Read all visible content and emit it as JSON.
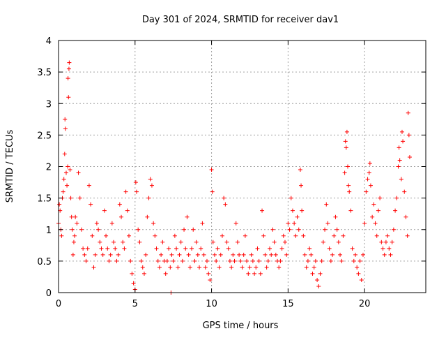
{
  "chart_data": {
    "type": "scatter",
    "title": "Day 301 of 2024, SRMTID for receiver dav1",
    "xlabel": "GPS time / hours",
    "ylabel": "SRMTID / TECUs",
    "xlim": [
      0,
      24
    ],
    "ylim": [
      0,
      4
    ],
    "x_ticks": [
      0,
      5,
      10,
      15,
      20
    ],
    "x_tick_labels": [
      "0",
      "5",
      "10",
      "15",
      "20"
    ],
    "y_ticks": [
      0,
      0.5,
      1,
      1.5,
      2,
      2.5,
      3,
      3.5,
      4
    ],
    "y_tick_labels": [
      "0",
      "0.5",
      "1",
      "1.5",
      "2",
      "2.5",
      "3",
      "3.5",
      "4"
    ],
    "grid": true,
    "marker": "+",
    "marker_color": "#ff0000",
    "series": [
      {
        "name": "dav1",
        "points": [
          [
            0.0,
            1.1
          ],
          [
            0.05,
            1.4
          ],
          [
            0.1,
            1.3
          ],
          [
            0.15,
            1.0
          ],
          [
            0.2,
            0.9
          ],
          [
            0.25,
            1.5
          ],
          [
            0.3,
            1.6
          ],
          [
            0.35,
            1.8
          ],
          [
            0.4,
            2.2
          ],
          [
            0.42,
            2.75
          ],
          [
            0.45,
            2.6
          ],
          [
            0.5,
            1.9
          ],
          [
            0.55,
            1.7
          ],
          [
            0.6,
            2.0
          ],
          [
            0.62,
            3.4
          ],
          [
            0.65,
            3.1
          ],
          [
            0.68,
            3.55
          ],
          [
            0.7,
            3.65
          ],
          [
            0.75,
            1.95
          ],
          [
            0.8,
            1.5
          ],
          [
            0.85,
            1.2
          ],
          [
            0.9,
            1.0
          ],
          [
            0.95,
            0.6
          ],
          [
            1.0,
            0.8
          ],
          [
            1.05,
            0.9
          ],
          [
            1.1,
            1.2
          ],
          [
            1.2,
            1.1
          ],
          [
            1.3,
            1.9
          ],
          [
            1.4,
            1.5
          ],
          [
            1.5,
            1.0
          ],
          [
            1.6,
            0.7
          ],
          [
            1.7,
            0.6
          ],
          [
            1.8,
            0.5
          ],
          [
            1.9,
            0.7
          ],
          [
            2.0,
            1.7
          ],
          [
            2.1,
            1.4
          ],
          [
            2.2,
            0.9
          ],
          [
            2.3,
            0.4
          ],
          [
            2.4,
            0.6
          ],
          [
            2.5,
            1.1
          ],
          [
            2.6,
            1.0
          ],
          [
            2.7,
            0.8
          ],
          [
            2.8,
            0.7
          ],
          [
            2.9,
            0.6
          ],
          [
            3.0,
            1.3
          ],
          [
            3.1,
            0.9
          ],
          [
            3.2,
            0.7
          ],
          [
            3.3,
            0.5
          ],
          [
            3.4,
            0.6
          ],
          [
            3.5,
            1.1
          ],
          [
            3.6,
            0.8
          ],
          [
            3.7,
            0.7
          ],
          [
            3.8,
            0.5
          ],
          [
            3.9,
            0.6
          ],
          [
            4.0,
            1.4
          ],
          [
            4.1,
            1.2
          ],
          [
            4.2,
            0.8
          ],
          [
            4.3,
            0.7
          ],
          [
            4.4,
            1.6
          ],
          [
            4.5,
            1.3
          ],
          [
            4.6,
            0.9
          ],
          [
            4.7,
            0.5
          ],
          [
            4.8,
            0.3
          ],
          [
            4.9,
            0.15
          ],
          [
            5.0,
            0.05
          ],
          [
            5.05,
            1.75
          ],
          [
            5.1,
            1.6
          ],
          [
            5.2,
            1.0
          ],
          [
            5.3,
            0.8
          ],
          [
            5.4,
            0.5
          ],
          [
            5.5,
            0.4
          ],
          [
            5.6,
            0.3
          ],
          [
            5.7,
            0.6
          ],
          [
            5.8,
            1.2
          ],
          [
            5.9,
            1.5
          ],
          [
            6.0,
            1.8
          ],
          [
            6.1,
            1.7
          ],
          [
            6.2,
            1.1
          ],
          [
            6.3,
            0.9
          ],
          [
            6.4,
            0.7
          ],
          [
            6.5,
            0.5
          ],
          [
            6.6,
            0.4
          ],
          [
            6.7,
            0.6
          ],
          [
            6.8,
            0.8
          ],
          [
            6.9,
            0.5
          ],
          [
            7.0,
            0.3
          ],
          [
            7.1,
            0.5
          ],
          [
            7.2,
            0.7
          ],
          [
            7.3,
            0.4
          ],
          [
            7.35,
            0.0
          ],
          [
            7.4,
            0.6
          ],
          [
            7.5,
            0.5
          ],
          [
            7.6,
            0.9
          ],
          [
            7.7,
            0.7
          ],
          [
            7.8,
            0.4
          ],
          [
            7.9,
            0.6
          ],
          [
            8.0,
            0.8
          ],
          [
            8.1,
            0.5
          ],
          [
            8.2,
            1.0
          ],
          [
            8.3,
            0.7
          ],
          [
            8.4,
            1.2
          ],
          [
            8.5,
            0.6
          ],
          [
            8.6,
            0.4
          ],
          [
            8.7,
            0.7
          ],
          [
            8.8,
            1.0
          ],
          [
            8.9,
            0.5
          ],
          [
            9.0,
            0.8
          ],
          [
            9.1,
            0.6
          ],
          [
            9.2,
            0.4
          ],
          [
            9.3,
            0.7
          ],
          [
            9.4,
            1.1
          ],
          [
            9.5,
            0.6
          ],
          [
            9.6,
            0.4
          ],
          [
            9.7,
            0.5
          ],
          [
            9.8,
            0.3
          ],
          [
            9.9,
            0.2
          ],
          [
            10.0,
            1.95
          ],
          [
            10.05,
            1.6
          ],
          [
            10.1,
            0.8
          ],
          [
            10.2,
            0.6
          ],
          [
            10.3,
            0.5
          ],
          [
            10.4,
            0.7
          ],
          [
            10.5,
            0.4
          ],
          [
            10.6,
            0.6
          ],
          [
            10.7,
            0.9
          ],
          [
            10.8,
            1.5
          ],
          [
            10.9,
            1.4
          ],
          [
            11.0,
            0.8
          ],
          [
            11.1,
            0.7
          ],
          [
            11.2,
            0.5
          ],
          [
            11.3,
            0.4
          ],
          [
            11.4,
            0.6
          ],
          [
            11.5,
            0.5
          ],
          [
            11.6,
            1.1
          ],
          [
            11.7,
            0.8
          ],
          [
            11.8,
            0.6
          ],
          [
            11.9,
            0.5
          ],
          [
            12.0,
            0.4
          ],
          [
            12.1,
            0.6
          ],
          [
            12.2,
            0.9
          ],
          [
            12.3,
            0.5
          ],
          [
            12.4,
            0.3
          ],
          [
            12.5,
            0.4
          ],
          [
            12.6,
            0.6
          ],
          [
            12.7,
            0.5
          ],
          [
            12.8,
            0.3
          ],
          [
            12.9,
            0.4
          ],
          [
            13.0,
            0.7
          ],
          [
            13.1,
            0.5
          ],
          [
            13.2,
            0.3
          ],
          [
            13.3,
            1.3
          ],
          [
            13.4,
            0.9
          ],
          [
            13.5,
            0.6
          ],
          [
            13.6,
            0.4
          ],
          [
            13.7,
            0.5
          ],
          [
            13.8,
            0.7
          ],
          [
            13.9,
            0.6
          ],
          [
            14.0,
            1.0
          ],
          [
            14.1,
            0.8
          ],
          [
            14.2,
            0.6
          ],
          [
            14.3,
            0.5
          ],
          [
            14.4,
            0.4
          ],
          [
            14.5,
            0.5
          ],
          [
            14.6,
            0.7
          ],
          [
            14.7,
            0.9
          ],
          [
            14.8,
            0.8
          ],
          [
            14.9,
            0.6
          ],
          [
            15.0,
            1.1
          ],
          [
            15.1,
            1.0
          ],
          [
            15.2,
            1.5
          ],
          [
            15.3,
            1.3
          ],
          [
            15.4,
            1.1
          ],
          [
            15.5,
            0.9
          ],
          [
            15.6,
            1.2
          ],
          [
            15.7,
            1.0
          ],
          [
            15.8,
            1.95
          ],
          [
            15.85,
            1.7
          ],
          [
            15.9,
            1.3
          ],
          [
            16.0,
            0.9
          ],
          [
            16.1,
            0.6
          ],
          [
            16.2,
            0.4
          ],
          [
            16.3,
            0.5
          ],
          [
            16.4,
            0.7
          ],
          [
            16.5,
            0.6
          ],
          [
            16.6,
            0.3
          ],
          [
            16.7,
            0.4
          ],
          [
            16.8,
            0.5
          ],
          [
            16.9,
            0.2
          ],
          [
            17.0,
            0.1
          ],
          [
            17.1,
            0.3
          ],
          [
            17.2,
            0.5
          ],
          [
            17.3,
            0.8
          ],
          [
            17.4,
            1.0
          ],
          [
            17.5,
            1.4
          ],
          [
            17.6,
            1.1
          ],
          [
            17.7,
            0.7
          ],
          [
            17.8,
            0.5
          ],
          [
            17.9,
            0.6
          ],
          [
            18.0,
            0.9
          ],
          [
            18.1,
            1.2
          ],
          [
            18.2,
            1.0
          ],
          [
            18.3,
            0.8
          ],
          [
            18.4,
            0.6
          ],
          [
            18.5,
            0.5
          ],
          [
            18.6,
            0.9
          ],
          [
            18.7,
            1.9
          ],
          [
            18.75,
            2.4
          ],
          [
            18.8,
            2.3
          ],
          [
            18.85,
            2.55
          ],
          [
            18.9,
            2.0
          ],
          [
            18.95,
            1.7
          ],
          [
            19.0,
            1.6
          ],
          [
            19.1,
            1.3
          ],
          [
            19.2,
            0.7
          ],
          [
            19.3,
            0.5
          ],
          [
            19.4,
            0.6
          ],
          [
            19.5,
            0.4
          ],
          [
            19.6,
            0.3
          ],
          [
            19.7,
            0.5
          ],
          [
            19.8,
            0.2
          ],
          [
            19.9,
            0.6
          ],
          [
            20.0,
            1.1
          ],
          [
            20.1,
            1.6
          ],
          [
            20.2,
            1.8
          ],
          [
            20.3,
            1.9
          ],
          [
            20.35,
            2.05
          ],
          [
            20.4,
            1.7
          ],
          [
            20.5,
            1.2
          ],
          [
            20.6,
            1.4
          ],
          [
            20.7,
            1.1
          ],
          [
            20.8,
            0.9
          ],
          [
            20.9,
            1.3
          ],
          [
            21.0,
            1.5
          ],
          [
            21.1,
            0.8
          ],
          [
            21.2,
            0.7
          ],
          [
            21.3,
            0.6
          ],
          [
            21.4,
            0.8
          ],
          [
            21.5,
            0.9
          ],
          [
            21.6,
            0.7
          ],
          [
            21.7,
            0.6
          ],
          [
            21.8,
            0.8
          ],
          [
            21.9,
            1.0
          ],
          [
            22.0,
            1.3
          ],
          [
            22.1,
            1.5
          ],
          [
            22.2,
            2.0
          ],
          [
            22.25,
            2.3
          ],
          [
            22.3,
            2.1
          ],
          [
            22.4,
            1.8
          ],
          [
            22.45,
            2.55
          ],
          [
            22.5,
            2.4
          ],
          [
            22.6,
            1.6
          ],
          [
            22.7,
            1.2
          ],
          [
            22.8,
            0.9
          ],
          [
            22.85,
            2.85
          ],
          [
            22.9,
            2.5
          ],
          [
            22.95,
            2.15
          ]
        ]
      }
    ]
  }
}
